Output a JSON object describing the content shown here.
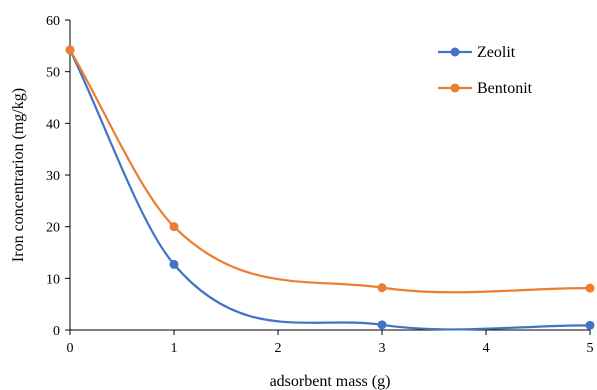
{
  "chart_data": {
    "type": "line",
    "title": "",
    "xlabel": "adsorbent mass (g)",
    "ylabel": "Iron concentrarion (mg/kg)",
    "x_ticks": [
      "0",
      "1",
      "2",
      "3",
      "4",
      "5"
    ],
    "y_ticks": [
      "0",
      "10",
      "20",
      "30",
      "40",
      "50",
      "60"
    ],
    "xlim": [
      0,
      5
    ],
    "ylim": [
      0,
      60
    ],
    "grid": false,
    "legend_position": "top-right",
    "smooth": true,
    "series": [
      {
        "name": "Zeolit",
        "color": "#4472C4",
        "x": [
          0,
          1,
          3,
          5
        ],
        "y": [
          54.2,
          12.7,
          1.0,
          0.9
        ]
      },
      {
        "name": "Bentonit",
        "color": "#ED7D31",
        "x": [
          0,
          1,
          3,
          5
        ],
        "y": [
          54.2,
          20.0,
          8.2,
          8.1
        ]
      }
    ]
  }
}
